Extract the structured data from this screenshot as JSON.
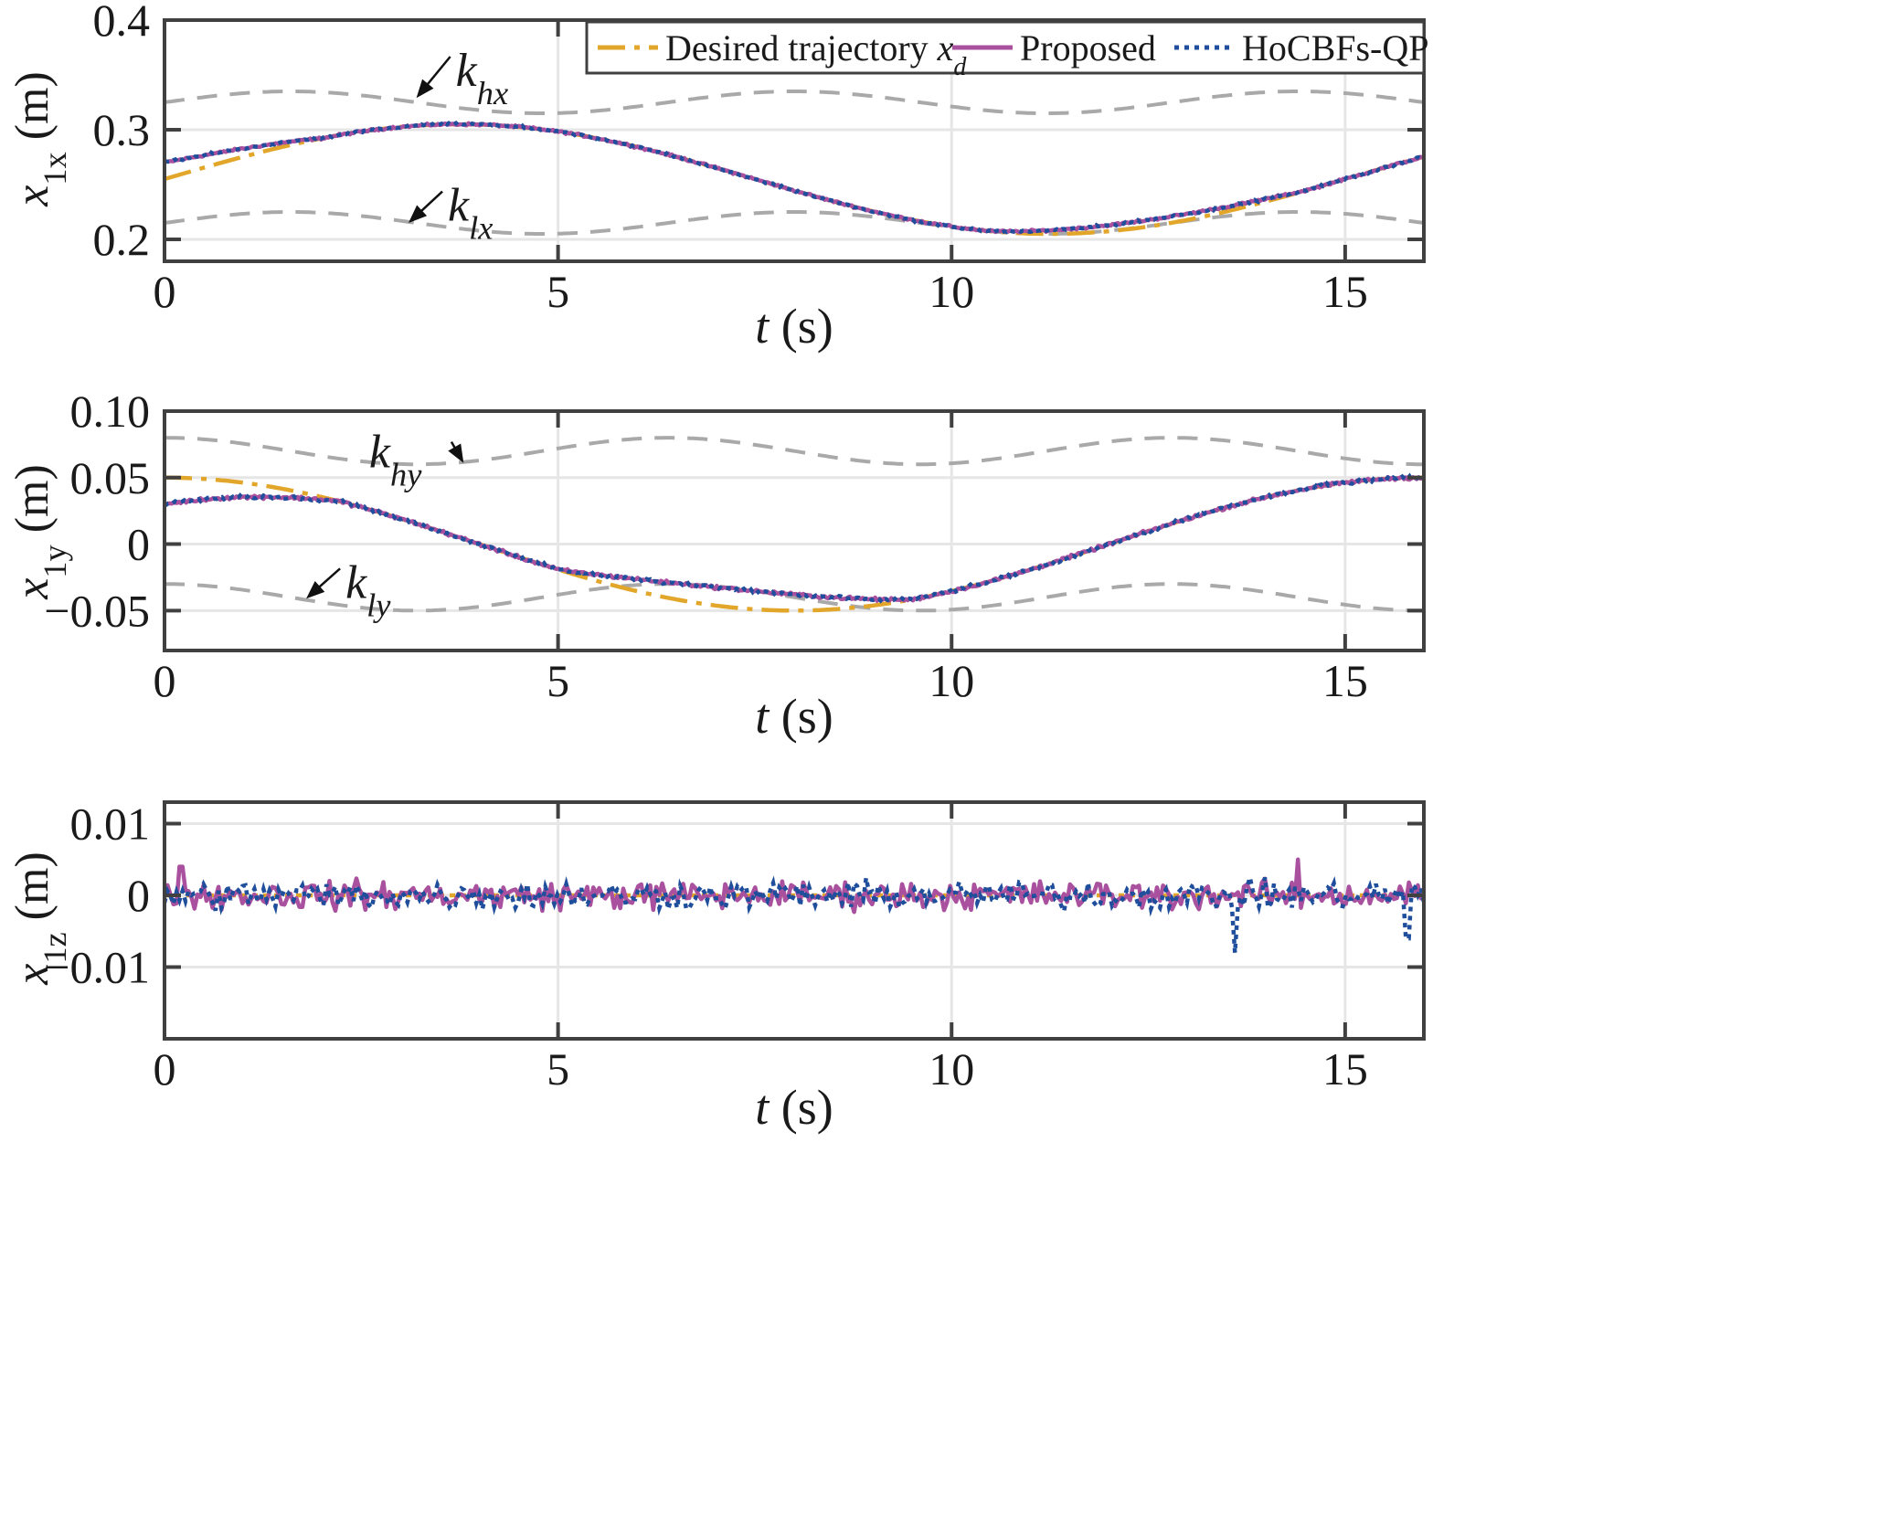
{
  "legend": {
    "items": [
      {
        "label": "Desired trajectory ",
        "math": "x",
        "sub": "d",
        "color": "#E2A62A",
        "dash": "30 10 6 10"
      },
      {
        "label": "Proposed",
        "math": "",
        "sub": "",
        "color": "#A9509E",
        "dash": ""
      },
      {
        "label": "HoCBFs-QP",
        "math": "",
        "sub": "",
        "color": "#1F4E9C",
        "dash": "5 6"
      }
    ]
  },
  "colors": {
    "desired": "#E2A62A",
    "proposed": "#A9509E",
    "hocbf": "#1F4E9C",
    "bounds": "#A9A9A9",
    "grid": "#E6E6E6",
    "axes": "#404040"
  },
  "chart_data": [
    {
      "type": "line",
      "title": "",
      "xlabel": {
        "var": "t",
        "unit": " (s)"
      },
      "ylabel": {
        "var": "x",
        "sub": "1x",
        "unit": " (m)"
      },
      "xlim": [
        0,
        16
      ],
      "ylim": [
        0.18,
        0.4
      ],
      "xticks": [
        0,
        5,
        10,
        15
      ],
      "xtick_labels": [
        "0",
        "5",
        "10",
        "15"
      ],
      "yticks": [
        0.2,
        0.3,
        0.4
      ],
      "ytick_labels": [
        "0.2",
        "0.3",
        "0.4"
      ],
      "grid": true,
      "legend": "top-right",
      "desired": {
        "kind": "sin",
        "offset": 0.255,
        "amp": 0.05,
        "period": 15,
        "phase": 0
      },
      "upper_bound": {
        "name": "k",
        "sub": "hx",
        "kind": "sin",
        "offset": 0.325,
        "amp": 0.01,
        "period": 6.4,
        "phase": 0
      },
      "lower_bound": {
        "name": "k",
        "sub": "lx",
        "kind": "sin",
        "offset": 0.215,
        "amp": 0.01,
        "period": 6.4,
        "phase": 0
      },
      "proposed_start": 0.27,
      "hocbf_start": 0.27,
      "converge_time": 2.0,
      "deviation": {
        "from": 10.5,
        "to": 14.5,
        "amount": 0.006
      },
      "noise": 0.0015,
      "annotations": [
        {
          "name": "k",
          "sub": "hx",
          "text_x": 3.7,
          "text_y": 0.355,
          "point_x": 3.2,
          "point_y": 0.329
        },
        {
          "name": "k",
          "sub": "lx",
          "text_x": 3.6,
          "text_y": 0.232,
          "point_x": 3.1,
          "point_y": 0.215
        }
      ]
    },
    {
      "type": "line",
      "title": "",
      "xlabel": {
        "var": "t",
        "unit": " (s)"
      },
      "ylabel": {
        "var": "x",
        "sub": "1y",
        "unit": " (m)"
      },
      "xlim": [
        0,
        16
      ],
      "ylim": [
        -0.08,
        0.1
      ],
      "xticks": [
        0,
        5,
        10,
        15
      ],
      "xtick_labels": [
        "0",
        "5",
        "10",
        "15"
      ],
      "yticks": [
        -0.05,
        0,
        0.05,
        0.1
      ],
      "ytick_labels": [
        "−0.05",
        "0",
        "0.05",
        "0.10"
      ],
      "grid": true,
      "desired": {
        "kind": "cos",
        "offset": 0.0,
        "amp": 0.05,
        "period": 16,
        "phase": 0
      },
      "upper_bound": {
        "name": "k",
        "sub": "hy",
        "kind": "cos",
        "offset": 0.07,
        "amp": 0.01,
        "period": 6.4,
        "phase": 0
      },
      "lower_bound": {
        "name": "k",
        "sub": "ly",
        "kind": "cos",
        "offset": -0.04,
        "amp": 0.01,
        "period": 6.4,
        "phase": 0
      },
      "proposed_start": 0.03,
      "hocbf_start": 0.03,
      "converge_time": 2.2,
      "deviation": {
        "from": 5.0,
        "to": 9.5,
        "amount": 0.014
      },
      "noise": 0.0018,
      "annotations": [
        {
          "name": "k",
          "sub": "hy",
          "text_x": 2.6,
          "text_y": 0.07,
          "point_x": 3.8,
          "point_y": 0.061
        },
        {
          "name": "k",
          "sub": "ly",
          "text_x": 2.3,
          "text_y": -0.028,
          "point_x": 1.8,
          "point_y": -0.041
        }
      ]
    },
    {
      "type": "line",
      "title": "",
      "xlabel": {
        "var": "t",
        "unit": " (s)"
      },
      "ylabel": {
        "var": "x",
        "sub": "1z",
        "unit": " (m)"
      },
      "xlim": [
        0,
        16
      ],
      "ylim": [
        -0.02,
        0.013
      ],
      "xticks": [
        0,
        5,
        10,
        15
      ],
      "xtick_labels": [
        "0",
        "5",
        "10",
        "15"
      ],
      "yticks": [
        -0.01,
        0,
        0.01
      ],
      "ytick_labels": [
        "−0.01",
        "0",
        "0.01"
      ],
      "grid": true,
      "desired": {
        "kind": "const",
        "offset": 0.0
      },
      "noise": 0.0022,
      "spikes": [
        {
          "series": "hocbf",
          "t": 13.6,
          "v": -0.008
        },
        {
          "series": "proposed",
          "t": 0.2,
          "v": 0.004
        },
        {
          "series": "proposed",
          "t": 14.4,
          "v": 0.005
        },
        {
          "series": "hocbf",
          "t": 15.8,
          "v": -0.006
        }
      ]
    }
  ]
}
